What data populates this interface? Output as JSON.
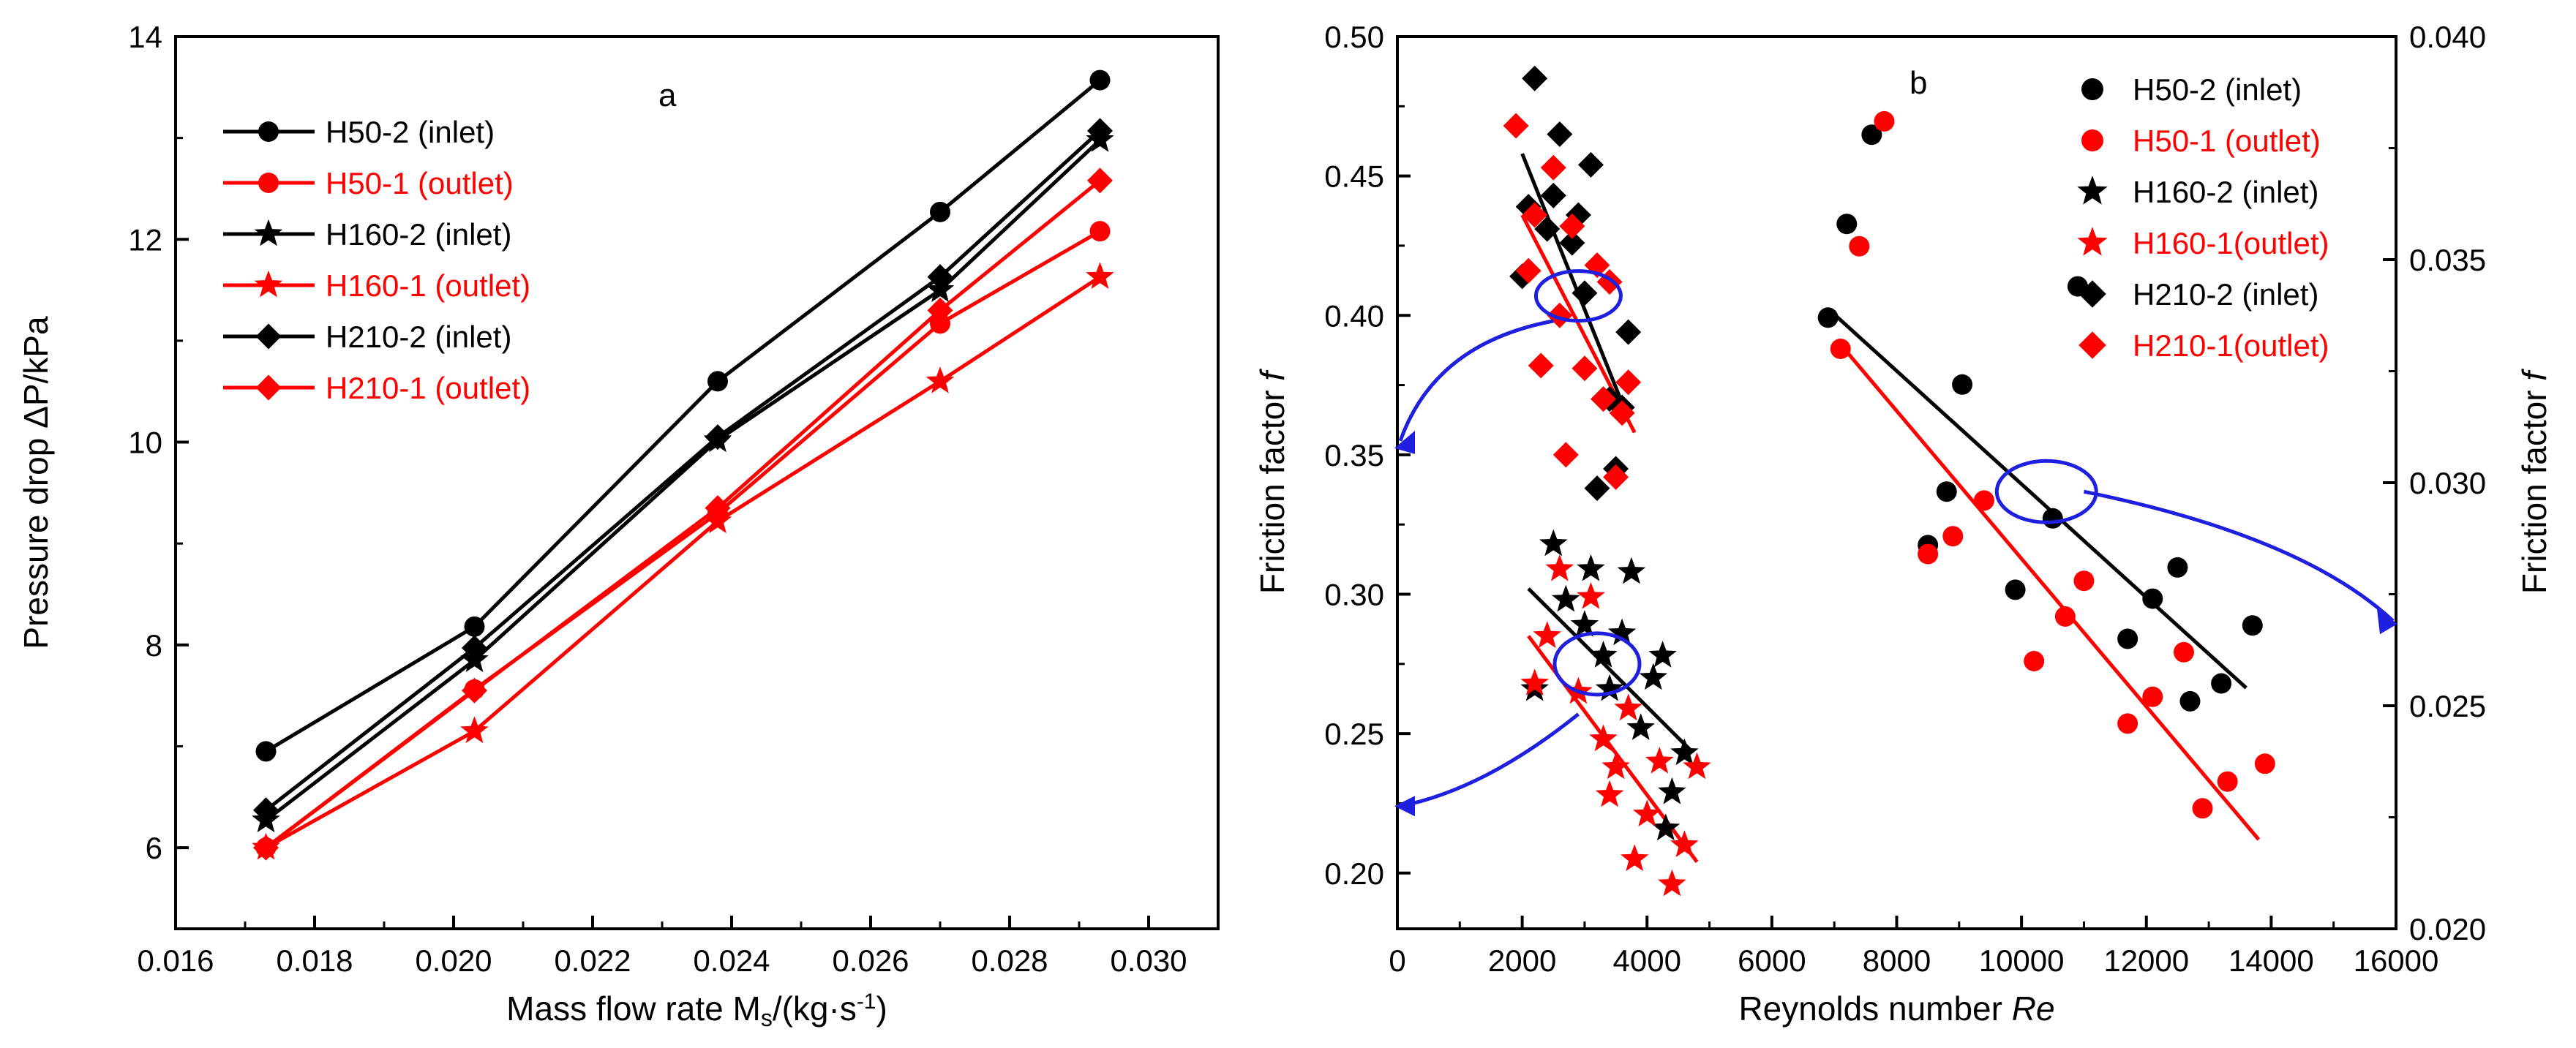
{
  "colors": {
    "black": "#000000",
    "red": "#ff0000",
    "blue": "#1f1fe0"
  },
  "chart_data": [
    {
      "type": "line",
      "panel_label": "a",
      "xlabel": "Mass flow rate M",
      "xlabel_sub": "s",
      "xlabel_unit": "/(kg·s",
      "xlabel_sup": "-1",
      "xlabel_end": ")",
      "ylabel": "Pressure drop ΔP/kPa",
      "xlim": [
        0.016,
        0.031
      ],
      "ylim": [
        5.2,
        14
      ],
      "xticks": [
        "0.016",
        "0.018",
        "0.020",
        "0.022",
        "0.024",
        "0.026",
        "0.028",
        "0.030"
      ],
      "yticks": [
        "6",
        "8",
        "10",
        "12",
        "14"
      ],
      "x": [
        0.0173,
        0.0203,
        0.0238,
        0.027,
        0.0293
      ],
      "series": [
        {
          "name": "H50-2 (inlet)",
          "color": "black",
          "marker": "circle",
          "values": [
            6.95,
            8.18,
            10.6,
            12.27,
            13.57
          ]
        },
        {
          "name": "H50-1 (outlet)",
          "color": "red",
          "marker": "circle",
          "values": [
            6.0,
            7.56,
            9.3,
            11.17,
            12.08
          ]
        },
        {
          "name": "H160-2 (inlet)",
          "color": "black",
          "marker": "star",
          "values": [
            6.27,
            7.85,
            10.02,
            11.5,
            12.98
          ]
        },
        {
          "name": "H160-1 (outlet)",
          "color": "red",
          "marker": "star",
          "values": [
            6.0,
            7.15,
            9.22,
            10.6,
            11.63
          ]
        },
        {
          "name": "H210-2 (inlet)",
          "color": "black",
          "marker": "diamond",
          "values": [
            6.37,
            7.97,
            10.05,
            11.63,
            13.07
          ]
        },
        {
          "name": "H210-1 (outlet)",
          "color": "red",
          "marker": "diamond",
          "values": [
            6.0,
            7.55,
            9.35,
            11.3,
            12.58
          ]
        }
      ]
    },
    {
      "type": "scatter",
      "panel_label": "b",
      "xlabel": "Reynolds number ",
      "xlabel_italic": "Re",
      "ylabel": "Friction factor ",
      "ylabel_italic": "f",
      "y2label": "Friction factor ",
      "y2label_italic": "f",
      "xlim": [
        0,
        16000
      ],
      "ylim": [
        0.18,
        0.5
      ],
      "y2lim": [
        0.02,
        0.04
      ],
      "xticks": [
        "0",
        "2000",
        "4000",
        "6000",
        "8000",
        "10000",
        "12000",
        "14000",
        "16000"
      ],
      "yticks": [
        "0.20",
        "0.25",
        "0.30",
        "0.35",
        "0.40",
        "0.45",
        "0.50"
      ],
      "y2ticks": [
        "0.020",
        "0.025",
        "0.030",
        "0.035",
        "0.040"
      ],
      "legend": [
        {
          "name": "H50-2  (inlet)",
          "color": "black",
          "marker": "circle"
        },
        {
          "name": "H50-1 (outlet)",
          "color": "red",
          "marker": "circle"
        },
        {
          "name": "H160-2 (inlet)",
          "color": "black",
          "marker": "star"
        },
        {
          "name": "H160-1(outlet)",
          "color": "red",
          "marker": "star"
        },
        {
          "name": "H210-2 (inlet)",
          "color": "black",
          "marker": "diamond"
        },
        {
          "name": "H210-1(outlet)",
          "color": "red",
          "marker": "diamond"
        }
      ],
      "series": [
        {
          "name": "H50-2 (inlet)",
          "axis": "right",
          "color": "black",
          "marker": "circle",
          "points": [
            [
              6900,
              0.0337
            ],
            [
              7200,
              0.0358
            ],
            [
              7600,
              0.0378
            ],
            [
              8500,
              0.0286
            ],
            [
              8800,
              0.0298
            ],
            [
              9050,
              0.0322
            ],
            [
              9900,
              0.0276
            ],
            [
              10500,
              0.0292
            ],
            [
              10900,
              0.0344
            ],
            [
              11700,
              0.0265
            ],
            [
              12100,
              0.0274
            ],
            [
              12500,
              0.0281
            ],
            [
              12700,
              0.0251
            ],
            [
              13200,
              0.0255
            ],
            [
              13700,
              0.0268
            ]
          ]
        },
        {
          "name": "H50-1 (outlet)",
          "axis": "right",
          "color": "red",
          "marker": "circle",
          "points": [
            [
              7100,
              0.033
            ],
            [
              7400,
              0.0353
            ],
            [
              7800,
              0.0381
            ],
            [
              8500,
              0.0284
            ],
            [
              8900,
              0.0288
            ],
            [
              9400,
              0.0296
            ],
            [
              10200,
              0.026
            ],
            [
              10700,
              0.027
            ],
            [
              11000,
              0.0278
            ],
            [
              11700,
              0.0246
            ],
            [
              12100,
              0.0252
            ],
            [
              12600,
              0.0262
            ],
            [
              12900,
              0.0227
            ],
            [
              13300,
              0.0233
            ],
            [
              13900,
              0.0237
            ]
          ]
        },
        {
          "name": "H160-2 (inlet)",
          "axis": "left",
          "color": "black",
          "marker": "star",
          "points": [
            [
              2200,
              0.266
            ],
            [
              2500,
              0.318
            ],
            [
              2700,
              0.298
            ],
            [
              3000,
              0.289
            ],
            [
              3100,
              0.309
            ],
            [
              3300,
              0.278
            ],
            [
              3400,
              0.266
            ],
            [
              3600,
              0.286
            ],
            [
              3750,
              0.308
            ],
            [
              3900,
              0.252
            ],
            [
              4100,
              0.27
            ],
            [
              4250,
              0.278
            ],
            [
              4400,
              0.229
            ],
            [
              4600,
              0.243
            ],
            [
              4300,
              0.216
            ]
          ]
        },
        {
          "name": "H160-1 (outlet)",
          "axis": "left",
          "color": "red",
          "marker": "star",
          "points": [
            [
              2200,
              0.268
            ],
            [
              2400,
              0.285
            ],
            [
              2600,
              0.309
            ],
            [
              2900,
              0.265
            ],
            [
              3100,
              0.299
            ],
            [
              3300,
              0.248
            ],
            [
              3500,
              0.238
            ],
            [
              3700,
              0.259
            ],
            [
              3800,
              0.205
            ],
            [
              4000,
              0.221
            ],
            [
              4200,
              0.24
            ],
            [
              4400,
              0.196
            ],
            [
              4600,
              0.21
            ],
            [
              4800,
              0.238
            ],
            [
              3400,
              0.228
            ]
          ]
        },
        {
          "name": "H210-2 (inlet)",
          "axis": "left",
          "color": "black",
          "marker": "diamond",
          "points": [
            [
              2000,
              0.414
            ],
            [
              2100,
              0.439
            ],
            [
              2200,
              0.485
            ],
            [
              2400,
              0.431
            ],
            [
              2500,
              0.443
            ],
            [
              2600,
              0.465
            ],
            [
              2800,
              0.426
            ],
            [
              2900,
              0.436
            ],
            [
              3100,
              0.454
            ],
            [
              3200,
              0.338
            ],
            [
              3400,
              0.37
            ],
            [
              3500,
              0.345
            ],
            [
              3600,
              0.367
            ],
            [
              3700,
              0.394
            ],
            [
              3000,
              0.408
            ]
          ]
        },
        {
          "name": "H210-1 (outlet)",
          "axis": "left",
          "color": "red",
          "marker": "diamond",
          "points": [
            [
              1900,
              0.468
            ],
            [
              2100,
              0.416
            ],
            [
              2300,
              0.382
            ],
            [
              2500,
              0.453
            ],
            [
              2700,
              0.35
            ],
            [
              2800,
              0.432
            ],
            [
              3000,
              0.381
            ],
            [
              3200,
              0.418
            ],
            [
              3300,
              0.37
            ],
            [
              3500,
              0.342
            ],
            [
              3400,
              0.412
            ],
            [
              3600,
              0.365
            ],
            [
              3700,
              0.376
            ],
            [
              2200,
              0.436
            ],
            [
              2600,
              0.4
            ]
          ]
        }
      ],
      "fit_lines": [
        {
          "axis": "right",
          "color": "black",
          "from": [
            6900,
            0.0339
          ],
          "to": [
            13600,
            0.0254
          ]
        },
        {
          "axis": "right",
          "color": "red",
          "from": [
            7100,
            0.0331
          ],
          "to": [
            13800,
            0.022
          ]
        },
        {
          "axis": "left",
          "color": "black",
          "from": [
            2000,
            0.458
          ],
          "to": [
            3700,
            0.363
          ]
        },
        {
          "axis": "left",
          "color": "red",
          "from": [
            2000,
            0.436
          ],
          "to": [
            3800,
            0.358
          ]
        },
        {
          "axis": "left",
          "color": "black",
          "from": [
            2100,
            0.302
          ],
          "to": [
            4700,
            0.244
          ]
        },
        {
          "axis": "left",
          "color": "red",
          "from": [
            2100,
            0.285
          ],
          "to": [
            4800,
            0.204
          ]
        }
      ]
    }
  ]
}
